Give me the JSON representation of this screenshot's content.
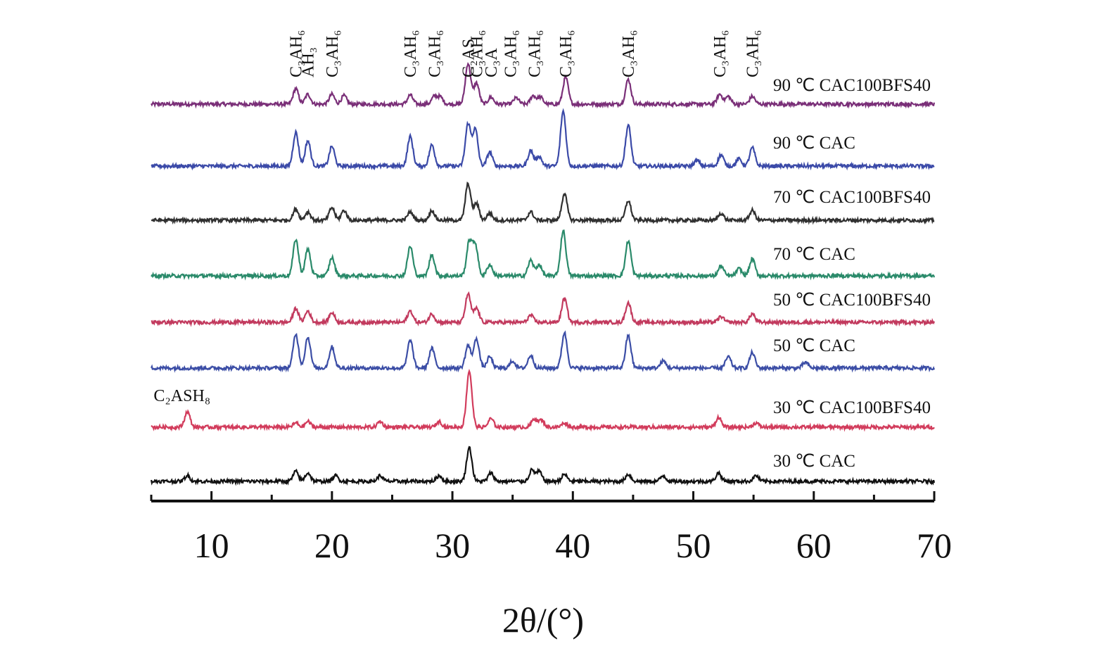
{
  "chart_data": {
    "type": "line",
    "xlabel": "2θ/(°)",
    "xlim": [
      5,
      70
    ],
    "x_ticks": [
      "10",
      "20",
      "30",
      "40",
      "50",
      "60",
      "70"
    ],
    "grid": false,
    "legend": "series labels placed at right end of each trace",
    "y_axis": "stacked intensity (no scale shown)",
    "series": [
      {
        "name": "90 ℃ CAC100BFS40",
        "color": "#7a2f78",
        "peaks": [
          [
            17.0,
            22
          ],
          [
            18.0,
            14
          ],
          [
            20.0,
            14
          ],
          [
            21.0,
            12
          ],
          [
            26.5,
            13
          ],
          [
            28.5,
            11
          ],
          [
            29.0,
            10
          ],
          [
            31.3,
            58
          ],
          [
            32.0,
            30
          ],
          [
            33.2,
            10
          ],
          [
            35.3,
            9
          ],
          [
            36.7,
            12
          ],
          [
            37.3,
            10
          ],
          [
            39.4,
            38
          ],
          [
            44.6,
            35
          ],
          [
            52.2,
            14
          ],
          [
            52.9,
            11
          ],
          [
            54.9,
            11
          ]
        ]
      },
      {
        "name": "90 ℃ CAC",
        "color": "#3b4aa8",
        "peaks": [
          [
            17.0,
            48
          ],
          [
            18.0,
            36
          ],
          [
            20.0,
            28
          ],
          [
            26.5,
            42
          ],
          [
            28.3,
            30
          ],
          [
            31.3,
            60
          ],
          [
            31.9,
            52
          ],
          [
            33.1,
            20
          ],
          [
            36.5,
            22
          ],
          [
            37.2,
            14
          ],
          [
            39.2,
            78
          ],
          [
            44.6,
            58
          ],
          [
            50.3,
            8
          ],
          [
            52.3,
            16
          ],
          [
            53.8,
            10
          ],
          [
            54.9,
            26
          ]
        ]
      },
      {
        "name": "70 ℃ CAC100BFS40",
        "color": "#303030",
        "peaks": [
          [
            17.0,
            16
          ],
          [
            18.0,
            12
          ],
          [
            20.0,
            18
          ],
          [
            21.0,
            14
          ],
          [
            26.5,
            12
          ],
          [
            28.3,
            14
          ],
          [
            31.3,
            52
          ],
          [
            32.0,
            24
          ],
          [
            33.1,
            10
          ],
          [
            36.5,
            12
          ],
          [
            39.3,
            38
          ],
          [
            44.6,
            28
          ],
          [
            52.3,
            10
          ],
          [
            54.9,
            14
          ]
        ]
      },
      {
        "name": "70 ℃ CAC",
        "color": "#2a8a6a",
        "peaks": [
          [
            17.0,
            52
          ],
          [
            18.0,
            38
          ],
          [
            20.0,
            26
          ],
          [
            26.5,
            42
          ],
          [
            28.3,
            30
          ],
          [
            31.4,
            48
          ],
          [
            31.9,
            44
          ],
          [
            33.1,
            16
          ],
          [
            36.5,
            22
          ],
          [
            37.2,
            16
          ],
          [
            39.2,
            64
          ],
          [
            44.6,
            50
          ],
          [
            52.3,
            14
          ],
          [
            53.8,
            10
          ],
          [
            54.9,
            24
          ]
        ]
      },
      {
        "name": "50 ℃ CAC100BFS40",
        "color": "#c23a5e",
        "peaks": [
          [
            17.0,
            20
          ],
          [
            18.0,
            16
          ],
          [
            20.0,
            14
          ],
          [
            26.5,
            16
          ],
          [
            28.3,
            12
          ],
          [
            31.3,
            40
          ],
          [
            32.0,
            20
          ],
          [
            36.5,
            10
          ],
          [
            39.3,
            34
          ],
          [
            44.6,
            28
          ],
          [
            52.3,
            8
          ],
          [
            54.9,
            12
          ]
        ]
      },
      {
        "name": "50 ℃ CAC",
        "color": "#3c4ea6",
        "peaks": [
          [
            17.0,
            48
          ],
          [
            18.0,
            44
          ],
          [
            20.0,
            30
          ],
          [
            26.5,
            40
          ],
          [
            28.3,
            28
          ],
          [
            31.3,
            32
          ],
          [
            32.0,
            42
          ],
          [
            33.1,
            16
          ],
          [
            35.0,
            10
          ],
          [
            36.5,
            18
          ],
          [
            39.3,
            50
          ],
          [
            44.6,
            46
          ],
          [
            47.5,
            10
          ],
          [
            52.9,
            16
          ],
          [
            54.9,
            22
          ],
          [
            59.3,
            8
          ]
        ]
      },
      {
        "name": "30 ℃ CAC100BFS40",
        "color": "#d23c5c",
        "peaks": [
          [
            8.0,
            22
          ],
          [
            17.0,
            6
          ],
          [
            18.0,
            8
          ],
          [
            24.0,
            8
          ],
          [
            28.9,
            8
          ],
          [
            31.4,
            80
          ],
          [
            33.2,
            12
          ],
          [
            36.8,
            12
          ],
          [
            37.4,
            10
          ],
          [
            39.3,
            6
          ],
          [
            52.1,
            14
          ],
          [
            55.2,
            6
          ]
        ]
      },
      {
        "name": "30 ℃ CAC",
        "color": "#111111",
        "peaks": [
          [
            8.0,
            8
          ],
          [
            17.0,
            14
          ],
          [
            18.0,
            12
          ],
          [
            20.3,
            8
          ],
          [
            24.0,
            8
          ],
          [
            28.9,
            8
          ],
          [
            31.4,
            48
          ],
          [
            33.2,
            12
          ],
          [
            36.6,
            16
          ],
          [
            37.2,
            14
          ],
          [
            39.3,
            10
          ],
          [
            44.6,
            10
          ],
          [
            47.5,
            8
          ],
          [
            52.1,
            12
          ],
          [
            55.2,
            8
          ]
        ]
      }
    ],
    "annotations": [
      {
        "text": "C₃AH₆",
        "x": 17.0,
        "series": "90 ℃ CAC100BFS40",
        "rotation": -90
      },
      {
        "text": "AH₃",
        "x": 18.0,
        "series": "90 ℃ CAC100BFS40",
        "rotation": -90
      },
      {
        "text": "C₃AH₆",
        "x": 20.0,
        "series": "90 ℃ CAC100BFS40",
        "rotation": -90
      },
      {
        "text": "C₃AH₆",
        "x": 26.5,
        "series": "90 ℃ CAC100BFS40",
        "rotation": -90
      },
      {
        "text": "C₃AH₆",
        "x": 28.5,
        "series": "90 ℃ CAC100BFS40",
        "rotation": -90
      },
      {
        "text": "C₂AS",
        "x": 31.3,
        "series": "90 ℃ CAC100BFS40",
        "rotation": -90
      },
      {
        "text": "C₃AH₆",
        "x": 32.0,
        "series": "90 ℃ CAC100BFS40",
        "rotation": -90
      },
      {
        "text": "C₃A",
        "x": 33.2,
        "series": "90 ℃ CAC100BFS40",
        "rotation": -90
      },
      {
        "text": "C₃AH₆",
        "x": 34.8,
        "series": "90 ℃ CAC100BFS40",
        "rotation": -90
      },
      {
        "text": "C₃AH₆",
        "x": 36.8,
        "series": "90 ℃ CAC100BFS40",
        "rotation": -90
      },
      {
        "text": "C₃AH₆",
        "x": 39.4,
        "series": "90 ℃ CAC100BFS40",
        "rotation": -90
      },
      {
        "text": "C₃AH₆",
        "x": 44.6,
        "series": "90 ℃ CAC100BFS40",
        "rotation": -90
      },
      {
        "text": "C₃AH₆",
        "x": 52.2,
        "series": "90 ℃ CAC100BFS40",
        "rotation": -90
      },
      {
        "text": "C₃AH₆",
        "x": 54.9,
        "series": "90 ℃ CAC100BFS40",
        "rotation": -90
      },
      {
        "text": "C₂ASH₈",
        "x": 8.0,
        "series": "30 ℃ CAC100BFS40",
        "rotation": 0
      }
    ]
  }
}
